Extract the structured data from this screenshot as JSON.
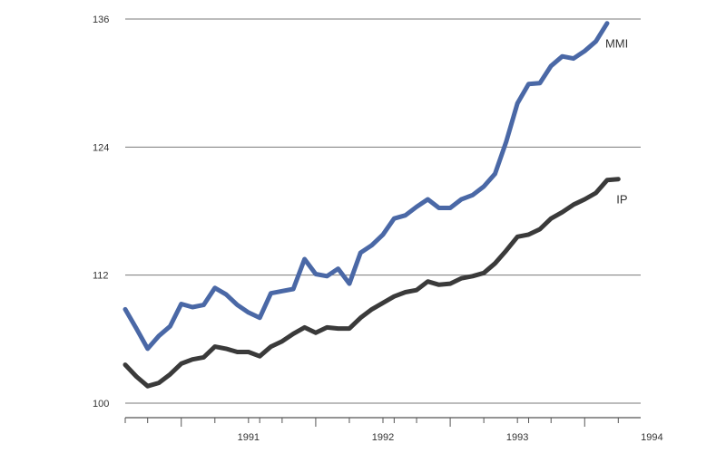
{
  "chart_data": {
    "type": "line",
    "title": "",
    "xlabel": "",
    "ylabel": "",
    "ylim": [
      100,
      136
    ],
    "yticks": [
      100,
      112,
      124,
      136
    ],
    "x_tick_labels": [
      "1991",
      "1992",
      "1993",
      "1994"
    ],
    "x_start": "1990-08",
    "x_end": "1994-06",
    "grid": true,
    "series": [
      {
        "name": "MMI",
        "color": "#4a68a6",
        "x": [
          "1990-08",
          "1990-09",
          "1990-10",
          "1990-11",
          "1990-12",
          "1991-01",
          "1991-02",
          "1991-03",
          "1991-04",
          "1991-05",
          "1991-06",
          "1991-07",
          "1991-08",
          "1991-09",
          "1991-10",
          "1991-11",
          "1991-12",
          "1992-01",
          "1992-02",
          "1992-03",
          "1992-04",
          "1992-05",
          "1992-06",
          "1992-07",
          "1992-08",
          "1992-09",
          "1992-10",
          "1992-11",
          "1992-12",
          "1993-01",
          "1993-02",
          "1993-03",
          "1993-04",
          "1993-05",
          "1993-06",
          "1993-07",
          "1993-08",
          "1993-09",
          "1993-10",
          "1993-11",
          "1993-12",
          "1994-01",
          "1994-02",
          "1994-03"
        ],
        "values": [
          108.8,
          107.0,
          105.1,
          106.3,
          107.2,
          109.3,
          109.0,
          109.2,
          110.8,
          110.2,
          109.2,
          108.5,
          108.0,
          110.3,
          110.5,
          110.7,
          113.5,
          112.1,
          111.9,
          112.6,
          111.2,
          114.1,
          114.8,
          115.8,
          117.3,
          117.6,
          118.4,
          119.1,
          118.3,
          118.3,
          119.1,
          119.5,
          120.3,
          121.5,
          124.5,
          128.1,
          129.9,
          130.0,
          131.6,
          132.5,
          132.3,
          133.0,
          133.9,
          135.6
        ]
      },
      {
        "name": "IP",
        "color": "#3a3a3a",
        "x": [
          "1990-08",
          "1990-09",
          "1990-10",
          "1990-11",
          "1990-12",
          "1991-01",
          "1991-02",
          "1991-03",
          "1991-04",
          "1991-05",
          "1991-06",
          "1991-07",
          "1991-08",
          "1991-09",
          "1991-10",
          "1991-11",
          "1991-12",
          "1992-01",
          "1992-02",
          "1992-03",
          "1992-04",
          "1992-05",
          "1992-06",
          "1992-07",
          "1992-08",
          "1992-09",
          "1992-10",
          "1992-11",
          "1992-12",
          "1993-01",
          "1993-02",
          "1993-03",
          "1993-04",
          "1993-05",
          "1993-06",
          "1993-07",
          "1993-08",
          "1993-09",
          "1993-10",
          "1993-11",
          "1993-12",
          "1994-01",
          "1994-02",
          "1994-03",
          "1994-04"
        ],
        "values": [
          103.6,
          102.5,
          101.6,
          101.9,
          102.7,
          103.7,
          104.1,
          104.3,
          105.3,
          105.1,
          104.8,
          104.8,
          104.4,
          105.3,
          105.8,
          106.5,
          107.1,
          106.6,
          107.1,
          107.0,
          107.0,
          108.0,
          108.8,
          109.4,
          110.0,
          110.4,
          110.6,
          111.4,
          111.1,
          111.2,
          111.7,
          111.9,
          112.2,
          113.1,
          114.3,
          115.6,
          115.8,
          116.3,
          117.3,
          117.9,
          118.6,
          119.1,
          119.7,
          120.9,
          121.0
        ]
      }
    ],
    "series_labels": [
      {
        "text": "MMI",
        "at_series": 0
      },
      {
        "text": "IP",
        "at_series": 1
      }
    ]
  }
}
